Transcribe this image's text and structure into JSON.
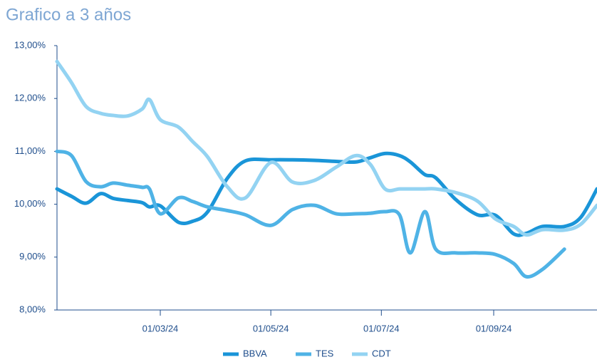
{
  "chart_data": {
    "type": "line",
    "title": "Grafico a 3 años",
    "x": [
      "04/01/24",
      "12/01/24",
      "20/01/24",
      "28/01/24",
      "04/02/24",
      "12/02/24",
      "20/02/24",
      "24/02/24",
      "01/03/24",
      "11/03/24",
      "19/03/24",
      "27/03/24",
      "07/04/24",
      "17/04/24",
      "01/05/24",
      "13/05/24",
      "25/05/24",
      "06/06/24",
      "17/06/24",
      "25/06/24",
      "03/07/24",
      "11/07/24",
      "17/07/24",
      "25/07/24",
      "31/07/24",
      "11/08/24",
      "23/08/24",
      "02/09/24",
      "12/09/24",
      "19/09/24",
      "28/09/24",
      "10/10/24",
      "19/10/24",
      "28/10/24"
    ],
    "xlim": [
      "04/01/24",
      "28/10/24"
    ],
    "xticks": [
      "01/03/24",
      "01/05/24",
      "01/07/24",
      "01/09/24"
    ],
    "ylim": [
      8,
      13
    ],
    "yticks": [
      {
        "value": 8,
        "label": "8,00%"
      },
      {
        "value": 9,
        "label": "9,00%"
      },
      {
        "value": 10,
        "label": "10,00%"
      },
      {
        "value": 11,
        "label": "11,00%"
      },
      {
        "value": 12,
        "label": "12,00%"
      },
      {
        "value": 13,
        "label": "13,00%"
      }
    ],
    "legend": "bottom",
    "series": [
      {
        "name": "BBVA",
        "color": "#1a95d8",
        "values": [
          10.29,
          10.15,
          10.02,
          10.2,
          10.11,
          10.07,
          10.03,
          9.95,
          9.97,
          9.66,
          9.68,
          9.85,
          10.49,
          10.82,
          10.84,
          10.84,
          10.83,
          10.81,
          10.8,
          10.88,
          10.96,
          10.92,
          10.8,
          10.56,
          10.5,
          10.09,
          9.8,
          9.79,
          9.44,
          9.45,
          9.58,
          9.58,
          9.75,
          10.29
        ]
      },
      {
        "name": "TES",
        "color": "#4fb3e6",
        "values": [
          11.0,
          10.92,
          10.43,
          10.33,
          10.4,
          10.36,
          10.32,
          10.29,
          9.82,
          10.12,
          10.05,
          9.95,
          9.88,
          9.8,
          9.6,
          9.9,
          9.98,
          9.82,
          9.82,
          9.83,
          9.86,
          9.8,
          9.08,
          9.86,
          9.15,
          9.08,
          9.08,
          9.05,
          8.88,
          8.63,
          8.77,
          9.15,
          null,
          null
        ]
      },
      {
        "name": "CDT",
        "color": "#93d3f2",
        "values": [
          12.7,
          12.3,
          11.85,
          11.72,
          11.68,
          11.67,
          11.8,
          11.98,
          11.6,
          11.46,
          11.18,
          10.9,
          10.33,
          10.12,
          10.79,
          10.42,
          10.45,
          10.7,
          10.92,
          10.75,
          10.29,
          10.29,
          10.29,
          10.29,
          10.29,
          10.22,
          10.06,
          9.72,
          9.58,
          9.42,
          9.52,
          9.51,
          9.62,
          9.98
        ]
      }
    ]
  }
}
